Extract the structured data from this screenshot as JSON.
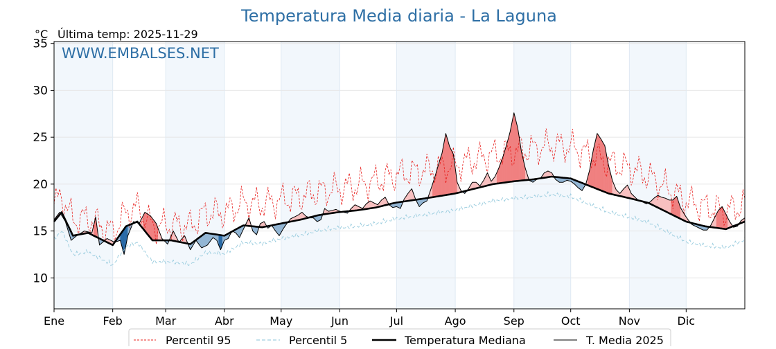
{
  "chart_data": {
    "type": "line",
    "title": "Temperatura Media diaria - La Laguna",
    "unit": "°C",
    "last_update_label": "Última temp: 2025-11-29",
    "watermark": "WWW.EMBALSES.NET",
    "ylim": [
      6.7,
      35.2
    ],
    "y_ticks": [
      10,
      15,
      20,
      25,
      30,
      35
    ],
    "xlim": [
      0,
      365
    ],
    "months": [
      "Ene",
      "Feb",
      "Mar",
      "Abr",
      "May",
      "Jun",
      "Jul",
      "Ago",
      "Sep",
      "Oct",
      "Nov",
      "Dic"
    ],
    "month_starts": [
      0,
      31,
      59,
      90,
      120,
      151,
      181,
      212,
      243,
      273,
      304,
      334
    ],
    "legend": [
      "Percentil 95",
      "Percentil 5",
      "Temperatura Mediana",
      "T. Media 2025"
    ],
    "colors": {
      "title": "#2e6fa5",
      "p95": "#e8201e",
      "p5": "#9fcfe0",
      "median": "#000000",
      "t2025": "#000000",
      "above": "#f08080",
      "above_light": "#f8c0c0",
      "below": "#2a6aa6",
      "below_light": "#93b6d4",
      "month_band": "#f2f7fc",
      "grid": "#e6e6e6"
    },
    "series_keypoints": {
      "median": [
        [
          0,
          16
        ],
        [
          4,
          17
        ],
        [
          10,
          14.5
        ],
        [
          18,
          14.8
        ],
        [
          26,
          14
        ],
        [
          31,
          13.5
        ],
        [
          38,
          15.5
        ],
        [
          44,
          16
        ],
        [
          52,
          14
        ],
        [
          62,
          14
        ],
        [
          72,
          13.6
        ],
        [
          80,
          14.8
        ],
        [
          90,
          14.5
        ],
        [
          100,
          15.6
        ],
        [
          110,
          15.4
        ],
        [
          120,
          15.8
        ],
        [
          130,
          16.2
        ],
        [
          140,
          16.7
        ],
        [
          150,
          17
        ],
        [
          160,
          17.2
        ],
        [
          170,
          17.5
        ],
        [
          180,
          18
        ],
        [
          190,
          18.3
        ],
        [
          200,
          18.6
        ],
        [
          212,
          19
        ],
        [
          222,
          19.5
        ],
        [
          232,
          20
        ],
        [
          243,
          20.3
        ],
        [
          253,
          20.5
        ],
        [
          263,
          20.8
        ],
        [
          273,
          20.6
        ],
        [
          283,
          19.8
        ],
        [
          293,
          19
        ],
        [
          304,
          18.5
        ],
        [
          314,
          18
        ],
        [
          324,
          17
        ],
        [
          334,
          16
        ],
        [
          344,
          15.5
        ],
        [
          355,
          15.2
        ],
        [
          365,
          16
        ]
      ],
      "t2025": [
        [
          0,
          16.2
        ],
        [
          3,
          17
        ],
        [
          6,
          16
        ],
        [
          9,
          14
        ],
        [
          12,
          14.5
        ],
        [
          16,
          15
        ],
        [
          20,
          14.8
        ],
        [
          22,
          16.5
        ],
        [
          24,
          13.5
        ],
        [
          28,
          14.2
        ],
        [
          32,
          13.8
        ],
        [
          35,
          14
        ],
        [
          37,
          12.5
        ],
        [
          39,
          14.5
        ],
        [
          42,
          16
        ],
        [
          45,
          15.8
        ],
        [
          48,
          17
        ],
        [
          51,
          16.6
        ],
        [
          54,
          15.8
        ],
        [
          57,
          14.2
        ],
        [
          60,
          13.6
        ],
        [
          63,
          15
        ],
        [
          66,
          13.8
        ],
        [
          69,
          14.5
        ],
        [
          72,
          13
        ],
        [
          75,
          14
        ],
        [
          78,
          13.2
        ],
        [
          81,
          13.5
        ],
        [
          84,
          14.3
        ],
        [
          86,
          14
        ],
        [
          88,
          13
        ],
        [
          90,
          14
        ],
        [
          92,
          14.2
        ],
        [
          94,
          15
        ],
        [
          96,
          14.8
        ],
        [
          98,
          14.3
        ],
        [
          101,
          15.6
        ],
        [
          103,
          16.4
        ],
        [
          105,
          15
        ],
        [
          107,
          14.6
        ],
        [
          109,
          15.8
        ],
        [
          111,
          16
        ],
        [
          113,
          15.3
        ],
        [
          115,
          15.6
        ],
        [
          117,
          15
        ],
        [
          119,
          14.5
        ],
        [
          121,
          15.2
        ],
        [
          123,
          15.8
        ],
        [
          125,
          16.3
        ],
        [
          127,
          16.5
        ],
        [
          129,
          16.7
        ],
        [
          131,
          17
        ],
        [
          133,
          16.6
        ],
        [
          135,
          16.4
        ],
        [
          137,
          16.4
        ],
        [
          139,
          16
        ],
        [
          141,
          16.2
        ],
        [
          143,
          17.4
        ],
        [
          145,
          17.1
        ],
        [
          147,
          17.2
        ],
        [
          149,
          17.3
        ],
        [
          151,
          17.1
        ],
        [
          153,
          17
        ],
        [
          155,
          16.9
        ],
        [
          157,
          17.4
        ],
        [
          159,
          17.8
        ],
        [
          161,
          17.6
        ],
        [
          163,
          17.4
        ],
        [
          165,
          17.9
        ],
        [
          167,
          18.2
        ],
        [
          169,
          18
        ],
        [
          171,
          17.8
        ],
        [
          173,
          18.3
        ],
        [
          175,
          18.6
        ],
        [
          177,
          17.8
        ],
        [
          179,
          17.5
        ],
        [
          181,
          17.6
        ],
        [
          183,
          17.4
        ],
        [
          185,
          18.4
        ],
        [
          187,
          19
        ],
        [
          189,
          19.5
        ],
        [
          191,
          18.4
        ],
        [
          193,
          17.6
        ],
        [
          195,
          18
        ],
        [
          197,
          18.2
        ],
        [
          199,
          19.4
        ],
        [
          201,
          20.6
        ],
        [
          203,
          22
        ],
        [
          205,
          23.3
        ],
        [
          207,
          25.4
        ],
        [
          209,
          24
        ],
        [
          211,
          23.2
        ],
        [
          213,
          20.2
        ],
        [
          215,
          19.3
        ],
        [
          217,
          19
        ],
        [
          219,
          19.5
        ],
        [
          221,
          20.2
        ],
        [
          223,
          20.2
        ],
        [
          225,
          19.8
        ],
        [
          227,
          20.4
        ],
        [
          229,
          21.2
        ],
        [
          231,
          20.3
        ],
        [
          233,
          20.8
        ],
        [
          235,
          21.7
        ],
        [
          237,
          22.8
        ],
        [
          239,
          24.1
        ],
        [
          241,
          25.6
        ],
        [
          243,
          27.6
        ],
        [
          245,
          26
        ],
        [
          247,
          23.4
        ],
        [
          249,
          21.7
        ],
        [
          251,
          20.4
        ],
        [
          253,
          20.2
        ],
        [
          255,
          20.5
        ],
        [
          257,
          20.6
        ],
        [
          259,
          21.2
        ],
        [
          261,
          21.4
        ],
        [
          263,
          21.2
        ],
        [
          265,
          20.5
        ],
        [
          267,
          20.2
        ],
        [
          269,
          20.2
        ],
        [
          271,
          20.4
        ],
        [
          273,
          20.3
        ],
        [
          275,
          20
        ],
        [
          277,
          19.6
        ],
        [
          279,
          19.3
        ],
        [
          281,
          20
        ],
        [
          283,
          21.5
        ],
        [
          285,
          23.7
        ],
        [
          287,
          25.4
        ],
        [
          289,
          24.8
        ],
        [
          291,
          24.1
        ],
        [
          293,
          22
        ],
        [
          295,
          20.4
        ],
        [
          297,
          19.4
        ],
        [
          299,
          19
        ],
        [
          301,
          19.5
        ],
        [
          303,
          19.9
        ],
        [
          305,
          19
        ],
        [
          307,
          18.6
        ],
        [
          309,
          18.2
        ],
        [
          311,
          18.1
        ],
        [
          313,
          17.9
        ],
        [
          315,
          18.1
        ],
        [
          317,
          18.5
        ],
        [
          319,
          18.8
        ],
        [
          321,
          18.6
        ],
        [
          323,
          18.5
        ],
        [
          325,
          18.3
        ],
        [
          327,
          18.3
        ],
        [
          329,
          18.7
        ],
        [
          331,
          17.5
        ],
        [
          333,
          16.8
        ],
        [
          335,
          16.2
        ],
        [
          337,
          15.7
        ],
        [
          339,
          15.5
        ],
        [
          341,
          15.3
        ],
        [
          343,
          15.1
        ],
        [
          345,
          15.1
        ],
        [
          347,
          15.6
        ],
        [
          349,
          16.4
        ],
        [
          351,
          17.2
        ],
        [
          353,
          17.6
        ],
        [
          355,
          16.8
        ],
        [
          357,
          16
        ],
        [
          359,
          15.4
        ],
        [
          361,
          15.5
        ],
        [
          363,
          16.1
        ],
        [
          365,
          16.4
        ]
      ],
      "p95_offset": [
        [
          0,
          1.8
        ],
        [
          31,
          1.4
        ],
        [
          59,
          1.6
        ],
        [
          90,
          2.4
        ],
        [
          120,
          2.5
        ],
        [
          151,
          2.5
        ],
        [
          181,
          3
        ],
        [
          212,
          3
        ],
        [
          243,
          3.2
        ],
        [
          273,
          3.4
        ],
        [
          304,
          3.2
        ],
        [
          334,
          2.2
        ],
        [
          365,
          1.8
        ]
      ],
      "p5_offset": [
        [
          0,
          -1.6
        ],
        [
          59,
          -2
        ],
        [
          120,
          -1.3
        ],
        [
          181,
          -1.4
        ],
        [
          243,
          -1.5
        ],
        [
          304,
          -1.7
        ],
        [
          334,
          -1.8
        ],
        [
          365,
          -1.6
        ]
      ]
    }
  }
}
